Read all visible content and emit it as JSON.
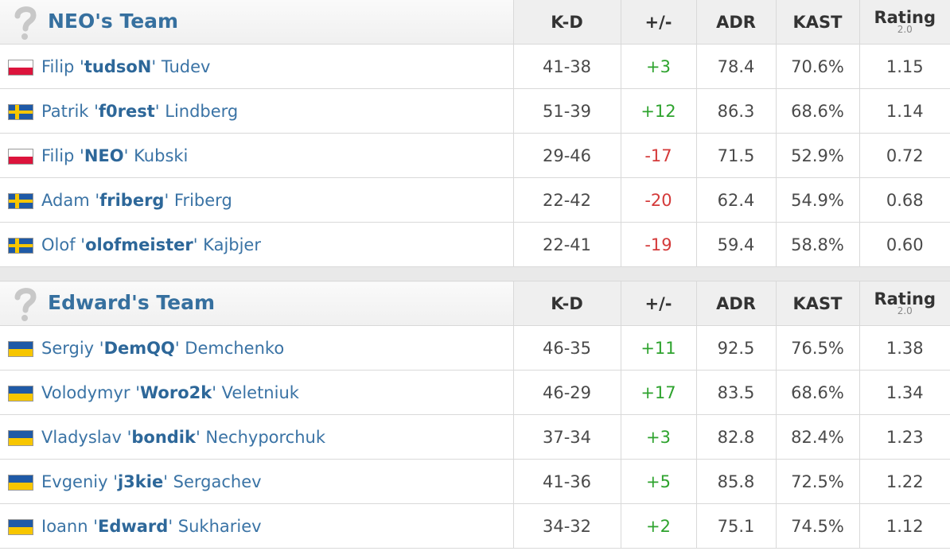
{
  "teams": [
    {
      "name": "NEO's Team",
      "header": {
        "kd": "K-D",
        "pm": "+/-",
        "adr": "ADR",
        "kast": "KAST",
        "rating": "Rating",
        "rating_version": "2.0"
      },
      "players": [
        {
          "first": "Filip '",
          "nick": "tudsoN",
          "last": "' Tudev",
          "kd": "41-38",
          "pm": "+3",
          "adr": "78.4",
          "kast": "70.6%",
          "rating": "1.15"
        },
        {
          "first": "Patrik '",
          "nick": "f0rest",
          "last": "' Lindberg",
          "kd": "51-39",
          "pm": "+12",
          "adr": "86.3",
          "kast": "68.6%",
          "rating": "1.14"
        },
        {
          "first": "Filip '",
          "nick": "NEO",
          "last": "' Kubski",
          "kd": "29-46",
          "pm": "-17",
          "adr": "71.5",
          "kast": "52.9%",
          "rating": "0.72"
        },
        {
          "first": "Adam '",
          "nick": "friberg",
          "last": "' Friberg",
          "kd": "22-42",
          "pm": "-20",
          "adr": "62.4",
          "kast": "54.9%",
          "rating": "0.68"
        },
        {
          "first": "Olof '",
          "nick": "olofmeister",
          "last": "' Kajbjer",
          "kd": "22-41",
          "pm": "-19",
          "adr": "59.4",
          "kast": "58.8%",
          "rating": "0.60"
        }
      ]
    },
    {
      "name": "Edward's Team",
      "header": {
        "kd": "K-D",
        "pm": "+/-",
        "adr": "ADR",
        "kast": "KAST",
        "rating": "Rating",
        "rating_version": "2.0"
      },
      "players": [
        {
          "first": "Sergiy '",
          "nick": "DemQQ",
          "last": "' Demchenko",
          "kd": "46-35",
          "pm": "+11",
          "adr": "92.5",
          "kast": "76.5%",
          "rating": "1.38"
        },
        {
          "first": "Volodymyr '",
          "nick": "Woro2k",
          "last": "' Veletniuk",
          "kd": "46-29",
          "pm": "+17",
          "adr": "83.5",
          "kast": "68.6%",
          "rating": "1.34"
        },
        {
          "first": "Vladyslav '",
          "nick": "bondik",
          "last": "' Nechyporchuk",
          "kd": "37-34",
          "pm": "+3",
          "adr": "82.8",
          "kast": "82.4%",
          "rating": "1.23"
        },
        {
          "first": "Evgeniy '",
          "nick": "j3kie",
          "last": "' Sergachev",
          "kd": "41-36",
          "pm": "+5",
          "adr": "85.8",
          "kast": "72.5%",
          "rating": "1.22"
        },
        {
          "first": "Ioann '",
          "nick": "Edward",
          "last": "' Sukhariev",
          "kd": "34-32",
          "pm": "+2",
          "adr": "75.1",
          "kast": "74.5%",
          "rating": "1.12"
        }
      ]
    }
  ]
}
